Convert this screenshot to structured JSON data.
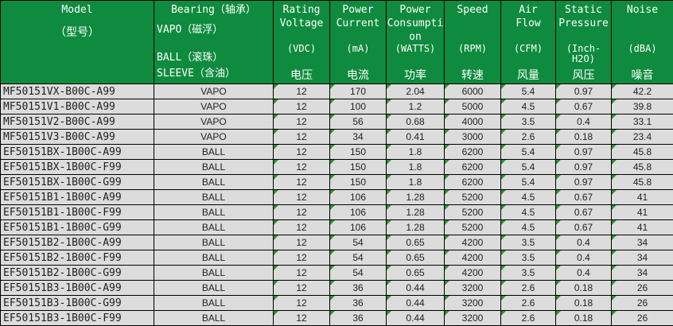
{
  "table": {
    "colors": {
      "header_green": "#0e8b3e",
      "row_gray": "#dcdcdc",
      "grid_border": "#000000",
      "error_marker_green": "#2d9133",
      "header_text": "#ffffff",
      "cell_text": "#1f1f1f"
    },
    "header": {
      "model": {
        "title": "Model",
        "cn": "（型号）"
      },
      "bearing": {
        "title": "Bearing（轴承）",
        "options": [
          "VAPO（磁浮）",
          "BALL（滚珠）",
          "SLEEVE（含油）"
        ]
      },
      "columns": [
        {
          "id": "voltage",
          "title_lines": [
            "Rating",
            "Voltage"
          ],
          "unit_lines": [
            "(VDC)"
          ],
          "cn": "电压"
        },
        {
          "id": "current",
          "title_lines": [
            "Power",
            "Current"
          ],
          "unit_lines": [
            "(mA)"
          ],
          "cn": "电流"
        },
        {
          "id": "watts",
          "title_lines": [
            "Power",
            "Consumpti",
            "on"
          ],
          "unit_lines": [
            "(WATTS)"
          ],
          "cn": "功率"
        },
        {
          "id": "speed",
          "title_lines": [
            "Speed"
          ],
          "unit_lines": [
            "(RPM)"
          ],
          "cn": "转速"
        },
        {
          "id": "airflow",
          "title_lines": [
            "Air",
            "Flow"
          ],
          "unit_lines": [
            "(CFM)"
          ],
          "cn": "风量"
        },
        {
          "id": "pressure",
          "title_lines": [
            "Static",
            "Pressure"
          ],
          "unit_lines": [
            "(Inch-",
            "H2O)"
          ],
          "cn": "风压"
        },
        {
          "id": "noise",
          "title_lines": [
            "Noise"
          ],
          "unit_lines": [
            "(dBA)"
          ],
          "cn": "噪音"
        }
      ]
    },
    "rows": [
      {
        "model": "MF50151VX-B00C-A99",
        "bearing": "VAPO",
        "values": [
          "12",
          "170",
          "2.04",
          "6000",
          "5.4",
          "0.97",
          "42.2"
        ]
      },
      {
        "model": "MF50151V1-B00C-A99",
        "bearing": "VAPO",
        "values": [
          "12",
          "100",
          "1.2",
          "5000",
          "4.5",
          "0.67",
          "39.8"
        ]
      },
      {
        "model": "MF50151V2-B00C-A99",
        "bearing": "VAPO",
        "values": [
          "12",
          "56",
          "0.68",
          "4000",
          "3.5",
          "0.4",
          "33.1"
        ]
      },
      {
        "model": "MF50151V3-B00C-A99",
        "bearing": "VAPO",
        "values": [
          "12",
          "34",
          "0.41",
          "3000",
          "2.6",
          "0.18",
          "23.4"
        ]
      },
      {
        "model": "EF50151BX-1B00C-A99",
        "bearing": "BALL",
        "values": [
          "12",
          "150",
          "1.8",
          "6200",
          "5.4",
          "0.97",
          "45.8"
        ]
      },
      {
        "model": "EF50151BX-1B00C-F99",
        "bearing": "BALL",
        "values": [
          "12",
          "150",
          "1.8",
          "6200",
          "5.4",
          "0.97",
          "45.8"
        ]
      },
      {
        "model": "EF50151BX-1B00C-G99",
        "bearing": "BALL",
        "values": [
          "12",
          "150",
          "1.8",
          "6200",
          "5.4",
          "0.97",
          "45.8"
        ]
      },
      {
        "model": "EF50151B1-1B00C-A99",
        "bearing": "BALL",
        "values": [
          "12",
          "106",
          "1.28",
          "5200",
          "4.5",
          "0.67",
          "41"
        ]
      },
      {
        "model": "EF50151B1-1B00C-F99",
        "bearing": "BALL",
        "values": [
          "12",
          "106",
          "1.28",
          "5200",
          "4.5",
          "0.67",
          "41"
        ]
      },
      {
        "model": "EF50151B1-1B00C-G99",
        "bearing": "BALL",
        "values": [
          "12",
          "106",
          "1.28",
          "5200",
          "4.5",
          "0.67",
          "41"
        ]
      },
      {
        "model": "EF50151B2-1B00C-A99",
        "bearing": "BALL",
        "values": [
          "12",
          "54",
          "0.65",
          "4200",
          "3.5",
          "0.4",
          "34"
        ]
      },
      {
        "model": "EF50151B2-1B00C-F99",
        "bearing": "BALL",
        "values": [
          "12",
          "54",
          "0.65",
          "4200",
          "3.5",
          "0.4",
          "34"
        ]
      },
      {
        "model": "EF50151B2-1B00C-G99",
        "bearing": "BALL",
        "values": [
          "12",
          "54",
          "0.65",
          "4200",
          "3.5",
          "0.4",
          "34"
        ]
      },
      {
        "model": "EF50151B3-1B00C-A99",
        "bearing": "BALL",
        "values": [
          "12",
          "36",
          "0.44",
          "3200",
          "2.6",
          "0.18",
          "26"
        ]
      },
      {
        "model": "EF50151B3-1B00C-G99",
        "bearing": "BALL",
        "values": [
          "12",
          "36",
          "0.44",
          "3200",
          "2.6",
          "0.18",
          "26"
        ]
      },
      {
        "model": "EF50151B3-1B00C-F99",
        "bearing": "BALL",
        "values": [
          "12",
          "36",
          "0.44",
          "3200",
          "2.6",
          "0.18",
          "26"
        ]
      }
    ]
  }
}
